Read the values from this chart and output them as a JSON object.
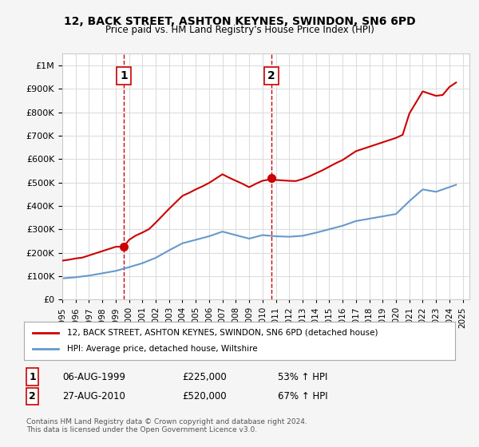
{
  "title": "12, BACK STREET, ASHTON KEYNES, SWINDON, SN6 6PD",
  "subtitle": "Price paid vs. HM Land Registry's House Price Index (HPI)",
  "legend_line1": "12, BACK STREET, ASHTON KEYNES, SWINDON, SN6 6PD (detached house)",
  "legend_line2": "HPI: Average price, detached house, Wiltshire",
  "footer": "Contains HM Land Registry data © Crown copyright and database right 2024.\nThis data is licensed under the Open Government Licence v3.0.",
  "sale1_label": "1",
  "sale1_date": "06-AUG-1999",
  "sale1_price": "£225,000",
  "sale1_hpi": "53% ↑ HPI",
  "sale2_label": "2",
  "sale2_date": "27-AUG-2010",
  "sale2_price": "£520,000",
  "sale2_hpi": "67% ↑ HPI",
  "sale1_x": 1999.6,
  "sale1_y": 225000,
  "sale2_x": 2010.65,
  "sale2_y": 520000,
  "price_line_color": "#cc0000",
  "hpi_line_color": "#6699cc",
  "vline_color": "#cc0000",
  "background_color": "#f5f5f5",
  "plot_bg_color": "#ffffff",
  "ylim": [
    0,
    1050000
  ],
  "xlim_start": 1995,
  "xlim_end": 2025.5
}
